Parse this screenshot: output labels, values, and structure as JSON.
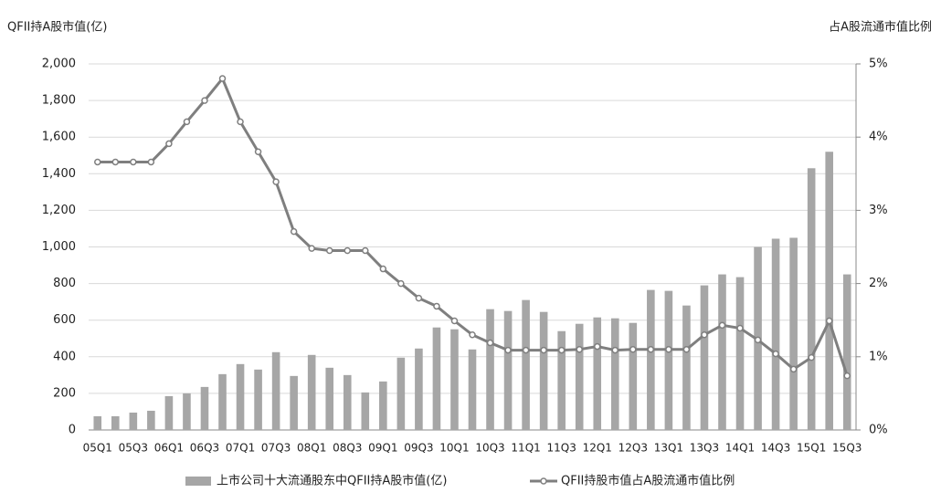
{
  "chart_data": {
    "type": "bar_line",
    "y_axis_title": "QFII持A股市值(亿)",
    "y2_axis_title": "占A股流通市值比例",
    "categories": [
      "05Q1",
      null,
      "05Q3",
      null,
      "06Q1",
      null,
      "06Q3",
      null,
      "07Q1",
      null,
      "07Q3",
      null,
      "08Q1",
      null,
      "08Q3",
      null,
      "09Q1",
      null,
      "09Q3",
      null,
      "10Q1",
      null,
      "10Q3",
      null,
      "11Q1",
      null,
      "11Q3",
      null,
      "12Q1",
      null,
      "12Q3",
      null,
      "13Q1",
      null,
      "13Q3",
      null,
      "14Q1",
      null,
      "14Q3",
      null,
      "15Q1",
      null,
      "15Q3"
    ],
    "series": [
      {
        "name": "上市公司十大流通股东中QFII持A股市值(亿)",
        "color": "#a6a6a6",
        "kind": "bar",
        "values": [
          75,
          75,
          95,
          105,
          185,
          200,
          235,
          305,
          360,
          330,
          425,
          295,
          410,
          340,
          300,
          205,
          265,
          395,
          445,
          560,
          550,
          440,
          660,
          650,
          710,
          645,
          540,
          580,
          615,
          610,
          585,
          765,
          760,
          680,
          790,
          850,
          835,
          1000,
          1045,
          1050,
          1430,
          1520,
          850
        ]
      },
      {
        "name": "QFII持股市值占A股流通市值比例",
        "color": "#7f7f7f",
        "kind": "line",
        "axis": "y2",
        "values": [
          3.66,
          3.66,
          3.66,
          3.66,
          3.91,
          4.21,
          4.5,
          4.8,
          4.21,
          3.8,
          3.39,
          2.71,
          2.48,
          2.45,
          2.45,
          2.45,
          2.2,
          2.0,
          1.8,
          1.69,
          1.49,
          1.3,
          1.19,
          1.09,
          1.09,
          1.09,
          1.09,
          1.1,
          1.14,
          1.09,
          1.1,
          1.1,
          1.1,
          1.1,
          1.3,
          1.43,
          1.39,
          1.23,
          1.04,
          0.83,
          0.99,
          1.49,
          0.74
        ]
      }
    ],
    "ylim": [
      0,
      2000
    ],
    "yticks": [
      0,
      200,
      400,
      600,
      800,
      {
        "value": 1000,
        "label": "1,000"
      },
      {
        "value": 1200,
        "label": "1,200"
      },
      {
        "value": 1400,
        "label": "1,400"
      },
      {
        "value": 1600,
        "label": "1,600"
      },
      {
        "value": 1800,
        "label": "1,800"
      },
      {
        "value": 2000,
        "label": "2,000"
      }
    ],
    "y2lim": [
      0,
      5
    ],
    "y2ticks": [
      {
        "value": 0,
        "label": "0%"
      },
      {
        "value": 1,
        "label": "1%"
      },
      {
        "value": 2,
        "label": "2%"
      },
      {
        "value": 3,
        "label": "3%"
      },
      {
        "value": 4,
        "label": "4%"
      },
      {
        "value": 5,
        "label": "5%"
      }
    ],
    "grid": true
  }
}
